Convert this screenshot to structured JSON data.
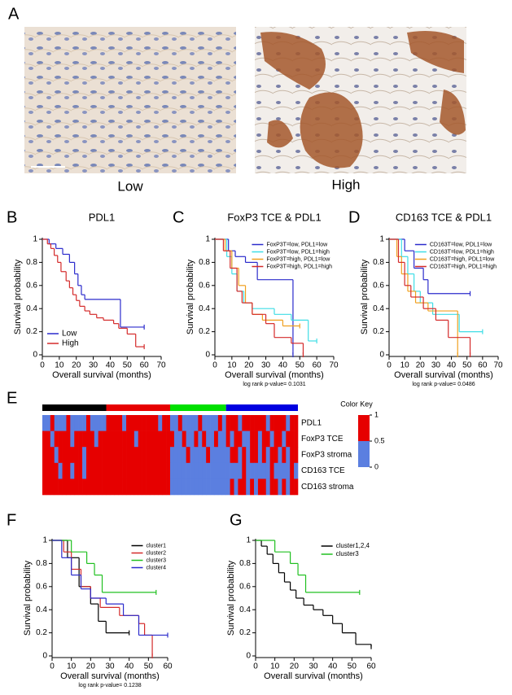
{
  "figure": {
    "panel_labels": [
      "A",
      "B",
      "C",
      "D",
      "E",
      "F",
      "G"
    ],
    "captions": [
      "Low",
      "High"
    ]
  },
  "chart_data": [
    {
      "type": "step",
      "title": "PDL1",
      "xlabel": "Overall survival (months)",
      "ylabel": "Survival probability",
      "xlim": [
        0,
        70
      ],
      "xticks": [
        0,
        10,
        20,
        30,
        40,
        50,
        60,
        70
      ],
      "ylim": [
        0,
        1
      ],
      "yticks": [
        0,
        0.2,
        0.4,
        0.6,
        0.8,
        1
      ],
      "legend": "lower left",
      "series": [
        {
          "name": "Low",
          "color": "#2b2bcc",
          "x": [
            0,
            4,
            8,
            12,
            16,
            19,
            21,
            23,
            25,
            46,
            60
          ],
          "values": [
            1,
            0.96,
            0.92,
            0.87,
            0.8,
            0.7,
            0.6,
            0.52,
            0.48,
            0.24,
            0.24
          ]
        },
        {
          "name": "High",
          "color": "#d42a2a",
          "x": [
            0,
            3,
            5,
            7,
            9,
            11,
            14,
            16,
            18,
            20,
            22,
            25,
            28,
            32,
            36,
            42,
            45,
            50,
            55,
            60
          ],
          "values": [
            1,
            0.96,
            0.92,
            0.86,
            0.8,
            0.72,
            0.64,
            0.58,
            0.52,
            0.47,
            0.42,
            0.38,
            0.35,
            0.32,
            0.3,
            0.27,
            0.23,
            0.18,
            0.07,
            0.07
          ]
        }
      ]
    },
    {
      "type": "step",
      "title": "FoxP3 TCE & PDL1",
      "xlabel": "Overall survival (months)",
      "ylabel": "Survival probability",
      "footnote": "log rank p-value= 0.1031",
      "xlim": [
        0,
        70
      ],
      "xticks": [
        0,
        10,
        20,
        30,
        40,
        50,
        60,
        70
      ],
      "ylim": [
        0,
        1
      ],
      "yticks": [
        0,
        0.2,
        0.4,
        0.6,
        0.8,
        1
      ],
      "legend": "upper right",
      "series": [
        {
          "name": "FoxP3T=low, PDL1=low",
          "color": "#2b2bcc",
          "x": [
            0,
            8,
            12,
            18,
            25,
            46
          ],
          "values": [
            1,
            0.9,
            0.85,
            0.8,
            0.65,
            0
          ]
        },
        {
          "name": "FoxP3T=low, PDL1=high",
          "color": "#3fdde6",
          "x": [
            0,
            7,
            10,
            13,
            17,
            22,
            35,
            45,
            55,
            60
          ],
          "values": [
            1,
            0.85,
            0.7,
            0.55,
            0.45,
            0.4,
            0.35,
            0.3,
            0.12,
            0.12
          ]
        },
        {
          "name": "FoxP3T=high, PDL1=low",
          "color": "#f0a020",
          "x": [
            0,
            6,
            10,
            14,
            18,
            22,
            28,
            40,
            50
          ],
          "values": [
            1,
            0.9,
            0.75,
            0.6,
            0.45,
            0.35,
            0.3,
            0.25,
            0.25
          ]
        },
        {
          "name": "FoxP3T=high, PDL1=high",
          "color": "#d42a2a",
          "x": [
            0,
            5,
            9,
            13,
            16,
            22,
            30,
            35,
            45,
            52
          ],
          "values": [
            1,
            0.9,
            0.75,
            0.55,
            0.45,
            0.35,
            0.27,
            0.15,
            0.1,
            0
          ]
        }
      ]
    },
    {
      "type": "step",
      "title": "CD163 TCE & PDL1",
      "xlabel": "Overall survival (months)",
      "ylabel": "Survival probability",
      "footnote": "log rank p-value= 0.0486",
      "xlim": [
        0,
        70
      ],
      "xticks": [
        0,
        10,
        20,
        30,
        40,
        50,
        60,
        70
      ],
      "ylim": [
        0,
        1
      ],
      "yticks": [
        0,
        0.2,
        0.4,
        0.6,
        0.8,
        1
      ],
      "legend": "upper right",
      "series": [
        {
          "name": "CD163T=low, PDL1=low",
          "color": "#2b2bcc",
          "x": [
            0,
            10,
            16,
            22,
            25,
            52
          ],
          "values": [
            1,
            0.9,
            0.75,
            0.65,
            0.53,
            0.53
          ]
        },
        {
          "name": "CD163T=low, PDL1=high",
          "color": "#3fdde6",
          "x": [
            0,
            8,
            12,
            16,
            20,
            28,
            45,
            60
          ],
          "values": [
            1,
            0.85,
            0.7,
            0.55,
            0.45,
            0.35,
            0.2,
            0.2
          ]
        },
        {
          "name": "CD163T=high, PDL1=low",
          "color": "#f0a020",
          "x": [
            0,
            5,
            8,
            12,
            17,
            25,
            44
          ],
          "values": [
            1,
            0.85,
            0.7,
            0.55,
            0.45,
            0.38,
            0
          ]
        },
        {
          "name": "CD163T=high, PDL1=high",
          "color": "#d42a2a",
          "x": [
            0,
            6,
            10,
            14,
            22,
            30,
            38,
            52
          ],
          "values": [
            1,
            0.8,
            0.6,
            0.5,
            0.4,
            0.3,
            0.15,
            0
          ]
        }
      ]
    },
    {
      "type": "heatmap",
      "row_labels": [
        "PDL1",
        "FoxP3 TCE",
        "FoxP3 stroma",
        "CD163 TCE",
        "CD163 stroma"
      ],
      "low_color": "#5b7fe0",
      "high_color": "#e60000",
      "clusters": [
        {
          "color": "#000000",
          "size": 16
        },
        {
          "color": "#e60000",
          "size": 16
        },
        {
          "color": "#00e000",
          "size": 14
        },
        {
          "color": "#0000e0",
          "size": 18
        }
      ],
      "colorbar": {
        "title": "Color Key",
        "lim": [
          0,
          1
        ],
        "ticks": [
          0,
          0.5,
          1
        ]
      },
      "values": [
        [
          0,
          0,
          1,
          0,
          0,
          0,
          1,
          0,
          0,
          0,
          0,
          1,
          0,
          0,
          0,
          0,
          1,
          1,
          1,
          1,
          0,
          1,
          1,
          1,
          1,
          1,
          1,
          1,
          1,
          0,
          1,
          1,
          0,
          0,
          1,
          0,
          0,
          0,
          0,
          1,
          0,
          0,
          0,
          0,
          1,
          0,
          1,
          1,
          1,
          0,
          1,
          1,
          1,
          1,
          1,
          1,
          0,
          1,
          1,
          1,
          1,
          0,
          1,
          1
        ],
        [
          1,
          1,
          0,
          1,
          1,
          1,
          1,
          0,
          1,
          1,
          1,
          1,
          1,
          0,
          1,
          1,
          1,
          1,
          1,
          1,
          1,
          1,
          1,
          0,
          1,
          1,
          1,
          1,
          1,
          1,
          1,
          1,
          1,
          0,
          0,
          1,
          0,
          0,
          1,
          0,
          1,
          0,
          0,
          1,
          0,
          0,
          1,
          0,
          1,
          1,
          0,
          0,
          1,
          1,
          0,
          1,
          1,
          0,
          1,
          1,
          0,
          1,
          1,
          1
        ],
        [
          1,
          1,
          1,
          0,
          1,
          1,
          1,
          1,
          1,
          1,
          0,
          1,
          1,
          1,
          1,
          1,
          1,
          1,
          1,
          1,
          1,
          1,
          1,
          1,
          1,
          1,
          1,
          1,
          1,
          1,
          1,
          1,
          0,
          0,
          0,
          0,
          1,
          0,
          0,
          0,
          0,
          1,
          0,
          0,
          0,
          0,
          0,
          1,
          1,
          0,
          1,
          0,
          1,
          1,
          0,
          1,
          0,
          1,
          1,
          0,
          1,
          0,
          1,
          1
        ],
        [
          1,
          1,
          1,
          1,
          0,
          1,
          1,
          0,
          1,
          1,
          0,
          1,
          1,
          1,
          1,
          1,
          1,
          1,
          1,
          1,
          1,
          1,
          1,
          1,
          1,
          1,
          1,
          1,
          1,
          1,
          1,
          1,
          0,
          0,
          0,
          0,
          0,
          0,
          0,
          0,
          0,
          0,
          0,
          0,
          0,
          0,
          0,
          0,
          0,
          0,
          1,
          0,
          0,
          0,
          0,
          0,
          0,
          1,
          0,
          0,
          0,
          0,
          1,
          0
        ],
        [
          1,
          1,
          1,
          1,
          1,
          1,
          1,
          1,
          1,
          1,
          1,
          1,
          1,
          1,
          1,
          1,
          1,
          1,
          1,
          1,
          1,
          1,
          1,
          1,
          1,
          1,
          1,
          1,
          1,
          1,
          1,
          1,
          0,
          0,
          0,
          0,
          0,
          0,
          0,
          0,
          0,
          0,
          0,
          0,
          0,
          0,
          0,
          1,
          0,
          1,
          1,
          0,
          1,
          0,
          1,
          1,
          0,
          1,
          1,
          0,
          1,
          0,
          1,
          1
        ]
      ]
    },
    {
      "type": "step",
      "xlabel": "Overall survival (months)",
      "ylabel": "Survival probability",
      "footnote": "log rank p-value= 0.1238",
      "xlim": [
        0,
        60
      ],
      "xticks": [
        0,
        10,
        20,
        30,
        40,
        50,
        60
      ],
      "ylim": [
        0,
        1
      ],
      "yticks": [
        0,
        0.2,
        0.4,
        0.6,
        0.8,
        1
      ],
      "legend": "upper right",
      "series": [
        {
          "name": "cluster1",
          "color": "#000000",
          "x": [
            0,
            8,
            14,
            20,
            24,
            28,
            40
          ],
          "values": [
            1,
            0.85,
            0.6,
            0.45,
            0.3,
            0.2,
            0.2
          ]
        },
        {
          "name": "cluster2",
          "color": "#d42a2a",
          "x": [
            0,
            6,
            10,
            15,
            20,
            25,
            35,
            45,
            48,
            52
          ],
          "values": [
            1,
            0.9,
            0.75,
            0.6,
            0.5,
            0.42,
            0.35,
            0.28,
            0.18,
            0
          ]
        },
        {
          "name": "cluster3",
          "color": "#20c020",
          "x": [
            0,
            10,
            18,
            22,
            26,
            54
          ],
          "values": [
            1,
            0.9,
            0.8,
            0.7,
            0.55,
            0.55
          ]
        },
        {
          "name": "cluster4",
          "color": "#2b2bcc",
          "x": [
            0,
            5,
            10,
            15,
            20,
            28,
            37,
            45,
            60
          ],
          "values": [
            1,
            0.85,
            0.7,
            0.58,
            0.5,
            0.45,
            0.35,
            0.18,
            0.18
          ]
        }
      ]
    },
    {
      "type": "step",
      "xlabel": "Overall survival (months)",
      "ylabel": "Survival probability",
      "xlim": [
        0,
        60
      ],
      "xticks": [
        0,
        10,
        20,
        30,
        40,
        50,
        60
      ],
      "ylim": [
        0,
        1
      ],
      "yticks": [
        0,
        0.2,
        0.4,
        0.6,
        0.8,
        1
      ],
      "legend": "upper right",
      "series": [
        {
          "name": "cluster1,2,4",
          "color": "#000000",
          "x": [
            0,
            3,
            6,
            9,
            12,
            15,
            18,
            21,
            25,
            30,
            35,
            40,
            45,
            52,
            60
          ],
          "values": [
            1,
            0.95,
            0.88,
            0.8,
            0.72,
            0.64,
            0.57,
            0.5,
            0.44,
            0.4,
            0.35,
            0.28,
            0.2,
            0.1,
            0.08
          ]
        },
        {
          "name": "cluster3",
          "color": "#20c020",
          "x": [
            0,
            10,
            18,
            22,
            26,
            54
          ],
          "values": [
            1,
            0.9,
            0.8,
            0.7,
            0.55,
            0.55
          ]
        }
      ]
    }
  ]
}
